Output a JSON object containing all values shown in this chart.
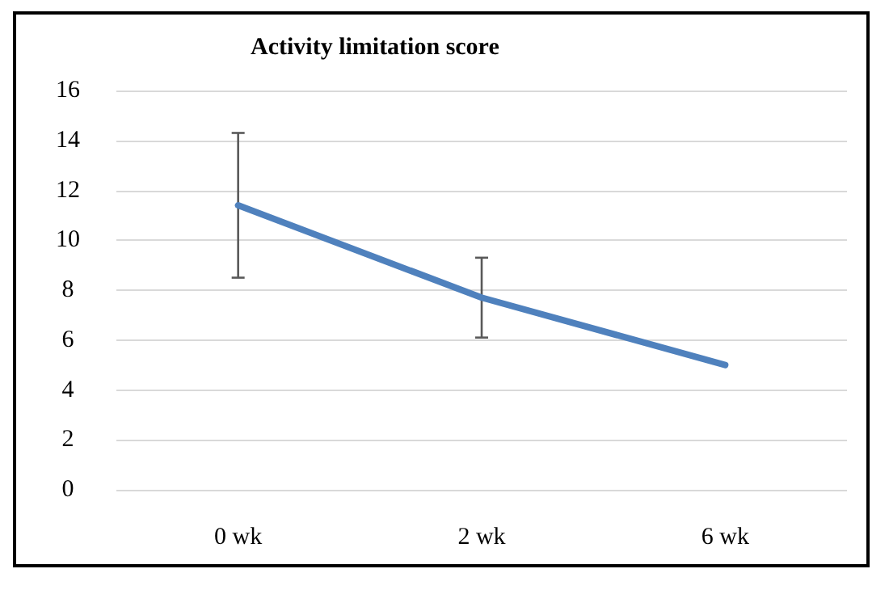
{
  "chart_data": {
    "type": "line",
    "title": "Activity limitation score",
    "categories": [
      "0 wk",
      "2 wk",
      "6 wk"
    ],
    "series": [
      {
        "color": "#4f81bd",
        "values": [
          11.4,
          7.7,
          5.0
        ],
        "errors": [
          2.9,
          1.6,
          null
        ]
      }
    ],
    "ylim": [
      0,
      16
    ],
    "yticks": [
      0,
      2,
      4,
      6,
      8,
      10,
      12,
      14,
      16
    ],
    "grid": "y",
    "legend": false,
    "marker": "none",
    "line_style": "solid"
  }
}
